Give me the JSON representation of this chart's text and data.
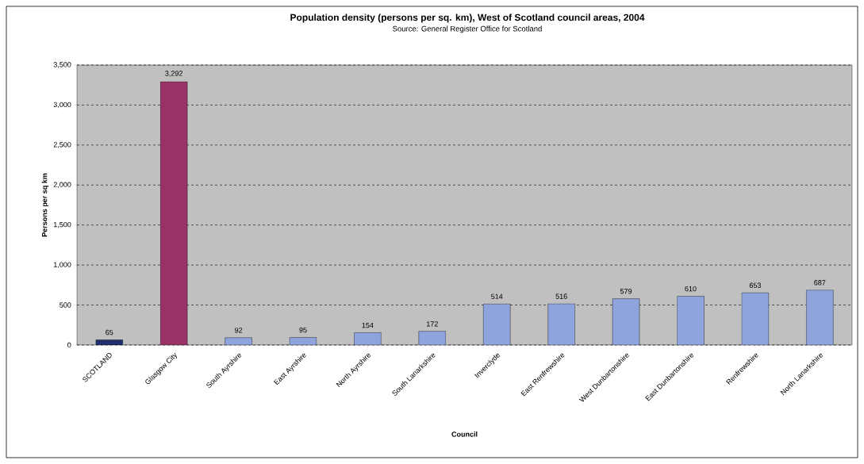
{
  "chart_data": {
    "type": "bar",
    "title": "Population density (persons per sq. km), West of Scotland council areas, 2004",
    "subtitle": "Source:  General Register Office for Scotland",
    "xlabel": "Council",
    "ylabel": "Persons per sq km",
    "categories": [
      "SCOTLAND",
      "Glasgow City",
      "South Ayrshire",
      "East Ayrshire",
      "North Ayrshire",
      "South Lanarkshire",
      "Inverclyde",
      "East Renfrewshire",
      "West Dunbartonshire",
      "East Dunbartonshire",
      "Renfrewshire",
      "North Lanarkshire"
    ],
    "values": [
      65,
      3292,
      92,
      95,
      154,
      172,
      514,
      516,
      579,
      610,
      653,
      687
    ],
    "value_labels": [
      "65",
      "3,292",
      "92",
      "95",
      "154",
      "172",
      "514",
      "516",
      "579",
      "610",
      "653",
      "687"
    ],
    "colors": [
      "#1f2f6b",
      "#993366",
      "#8fa3dc",
      "#8fa3dc",
      "#8fa3dc",
      "#8fa3dc",
      "#8fa3dc",
      "#8fa3dc",
      "#8fa3dc",
      "#8fa3dc",
      "#8fa3dc",
      "#8fa3dc"
    ],
    "ylim": [
      0,
      3500
    ],
    "yticks": [
      {
        "value": 0,
        "label": "0"
      },
      {
        "value": 500,
        "label": "500"
      },
      {
        "value": 1000,
        "label": "1,000"
      },
      {
        "value": 1500,
        "label": "1,500"
      },
      {
        "value": 2000,
        "label": "2,000"
      },
      {
        "value": 2500,
        "label": "2,500"
      },
      {
        "value": 3000,
        "label": "3,000"
      },
      {
        "value": 3500,
        "label": "3,500"
      }
    ],
    "grid": "y"
  }
}
